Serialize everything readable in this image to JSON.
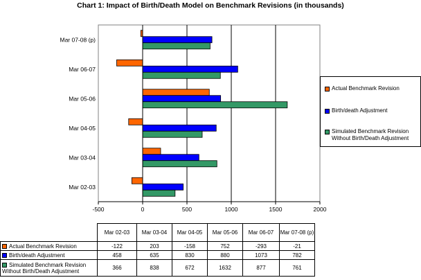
{
  "title": "Chart 1: Impact of Birth/Death Model on Benchmark Revisions (in thousands)",
  "chart_data": {
    "type": "bar",
    "orientation": "horizontal",
    "title": "Chart 1: Impact of Birth/Death Model on Benchmark Revisions (in thousands)",
    "categories": [
      "Mar 02-03",
      "Mar 03-04",
      "Mar 04-05",
      "Mar 05-06",
      "Mar 06-07",
      "Mar 07-08 (p)"
    ],
    "series": [
      {
        "name": "Actual Benchmark Revision",
        "color": "#FF6600",
        "values": [
          -122,
          203,
          -158,
          752,
          -293,
          -21
        ]
      },
      {
        "name": "Birth/death Adjustment",
        "color": "#0000FF",
        "values": [
          458,
          635,
          830,
          880,
          1073,
          782
        ]
      },
      {
        "name": "Simulated Benchmark Revision Without Birth/Death Adjustment",
        "color": "#339966",
        "values": [
          366,
          838,
          672,
          1632,
          877,
          761
        ]
      }
    ],
    "xlim": [
      -500,
      2000
    ],
    "xticks": [
      "-500",
      "0",
      "500",
      "1000",
      "1500",
      "2000"
    ],
    "grid": true,
    "legend_position": "right"
  },
  "table": {
    "headers": [
      "Mar 02-03",
      "Mar 03-04",
      "Mar 04-05",
      "Mar 05-06",
      "Mar 06-07",
      "Mar 07-08 (p)"
    ],
    "rows": [
      {
        "label": "Actual Benchmark Revision",
        "color": "#FF6600",
        "cells": [
          "-122",
          "203",
          "-158",
          "752",
          "-293",
          "-21"
        ]
      },
      {
        "label": "Birth/death Adjustment",
        "color": "#0000FF",
        "cells": [
          "458",
          "635",
          "830",
          "880",
          "1073",
          "782"
        ]
      },
      {
        "label": "Simulated Benchmark Revision Without Birth/Death Adjustment",
        "color": "#339966",
        "cells": [
          "366",
          "838",
          "672",
          "1632",
          "877",
          "761"
        ]
      }
    ]
  }
}
